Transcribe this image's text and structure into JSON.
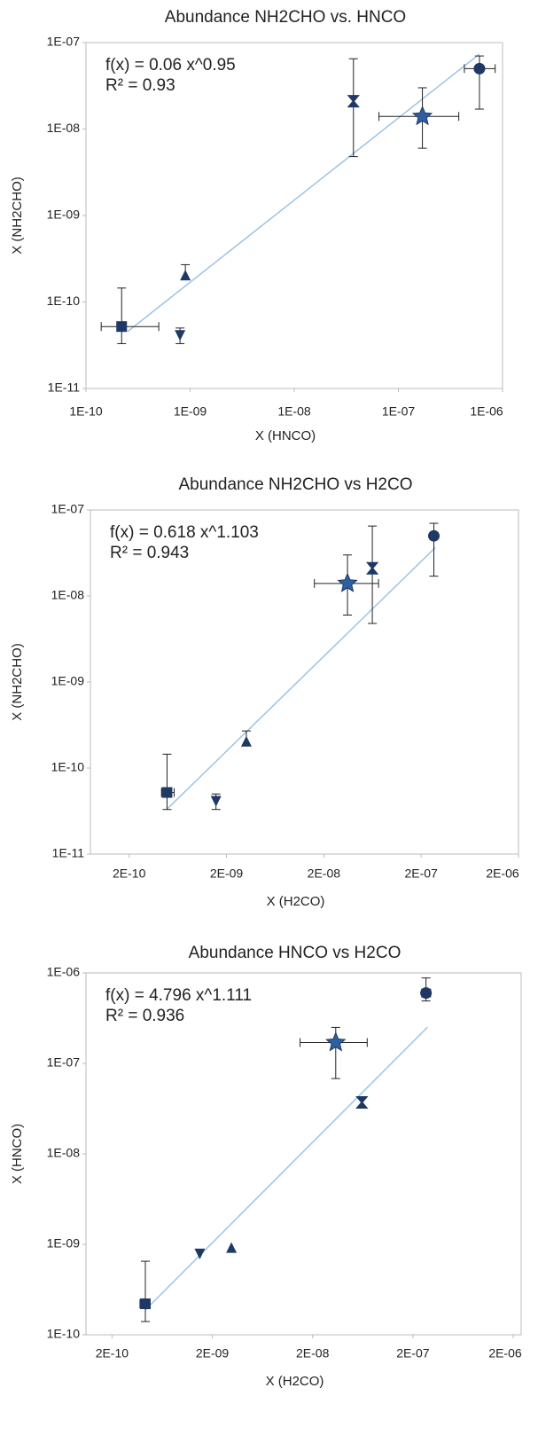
{
  "chart_data": [
    {
      "type": "scatter",
      "title": "Abundance NH2CHO vs. HNCO",
      "x_label": "X (HNCO)",
      "y_label": "X (NH2CHO)",
      "log_x": true,
      "log_y": true,
      "xlim": [
        1e-10,
        1e-06
      ],
      "ylim": [
        1e-11,
        1e-07
      ],
      "xticks": [
        {
          "value": 1e-10,
          "label": "1E-10"
        },
        {
          "value": 1e-09,
          "label": "1E-09"
        },
        {
          "value": 1e-08,
          "label": "1E-08"
        },
        {
          "value": 1e-07,
          "label": "1E-07"
        },
        {
          "value": 1e-06,
          "label": "1E-06"
        }
      ],
      "yticks": [
        {
          "value": 1e-11,
          "label": "1E-11"
        },
        {
          "value": 1e-10,
          "label": "1E-10"
        },
        {
          "value": 1e-09,
          "label": "1E-09"
        },
        {
          "value": 1e-08,
          "label": "1E-08"
        },
        {
          "value": 1e-07,
          "label": "1E-07"
        }
      ],
      "annotations": [
        "f(x) = 0.06 x^0.95",
        "R² = 0.93"
      ],
      "markers": [
        "square",
        "triangle-down",
        "triangle-up",
        "cross",
        "star",
        "circle"
      ],
      "color": "#1f3864",
      "star_color": "#2e5f9e",
      "fit_color": "#9dc3e6",
      "x": [
        2.2e-10,
        8e-10,
        9e-10,
        3.7e-08,
        1.7e-07,
        6e-07
      ],
      "y": [
        5.2e-11,
        4.2e-11,
        2e-10,
        2.1e-08,
        1.4e-08,
        5e-08
      ],
      "x_low": [
        1.4e-10,
        null,
        null,
        null,
        6.5e-08,
        4.3e-07
      ],
      "x_high": [
        5e-10,
        null,
        null,
        null,
        3.8e-07,
        8.5e-07
      ],
      "y_low": [
        3.3e-11,
        3.3e-11,
        null,
        4.8e-09,
        6e-09,
        1.7e-08
      ],
      "y_high": [
        1.45e-10,
        5e-11,
        2.7e-10,
        6.5e-08,
        3e-08,
        7e-08
      ],
      "fit": {
        "coef": 0.06,
        "power": 0.95,
        "x_range": [
          2.5e-10,
          6e-07
        ]
      }
    },
    {
      "type": "scatter",
      "title": "Abundance NH2CHO vs H2CO",
      "x_label": "X (H2CO)",
      "y_label": "X (NH2CHO)",
      "log_x": true,
      "log_y": true,
      "xlim": [
        8e-11,
        2e-06
      ],
      "ylim": [
        1e-11,
        1e-07
      ],
      "xticks": [
        {
          "value": 2e-10,
          "label": "2E-10"
        },
        {
          "value": 2e-09,
          "label": "2E-09"
        },
        {
          "value": 2e-08,
          "label": "2E-08"
        },
        {
          "value": 2e-07,
          "label": "2E-07"
        },
        {
          "value": 2e-06,
          "label": "2E-06"
        }
      ],
      "yticks": [
        {
          "value": 1e-11,
          "label": "1E-11"
        },
        {
          "value": 1e-10,
          "label": "1E-10"
        },
        {
          "value": 1e-09,
          "label": "1E-09"
        },
        {
          "value": 1e-08,
          "label": "1E-08"
        },
        {
          "value": 1e-07,
          "label": "1E-07"
        }
      ],
      "annotations": [
        "f(x) = 0.618 x^1.103",
        "R² = 0.943"
      ],
      "markers": [
        "square",
        "triangle-down",
        "triangle-up",
        "star",
        "cross",
        "circle"
      ],
      "color": "#1f3864",
      "star_color": "#2e5f9e",
      "fit_color": "#9dc3e6",
      "x": [
        4.9e-10,
        1.56e-09,
        3.2e-09,
        3.5e-08,
        6.3e-08,
        2.7e-07
      ],
      "y": [
        5.2e-11,
        4.2e-11,
        2e-10,
        1.4e-08,
        2.1e-08,
        5e-08
      ],
      "x_low": [
        4.3e-10,
        null,
        null,
        1.6e-08,
        null,
        2.5e-07
      ],
      "x_high": [
        5.8e-10,
        null,
        null,
        7.3e-08,
        null,
        2.9e-07
      ],
      "y_low": [
        3.3e-11,
        3.3e-11,
        null,
        6e-09,
        4.8e-09,
        1.7e-08
      ],
      "y_high": [
        1.45e-10,
        5e-11,
        2.7e-10,
        3e-08,
        6.5e-08,
        7e-08
      ],
      "fit": {
        "coef": 0.618,
        "power": 1.103,
        "x_range": [
          4.9e-10,
          2.8e-07
        ]
      }
    },
    {
      "type": "scatter",
      "title": "Abundance HNCO vs H2CO",
      "x_label": "X (H2CO)",
      "y_label": "X (HNCO)",
      "log_x": true,
      "log_y": true,
      "xlim": [
        1.1e-10,
        2.4e-06
      ],
      "ylim": [
        1e-10,
        1e-06
      ],
      "xticks": [
        {
          "value": 2e-10,
          "label": "2E-10"
        },
        {
          "value": 2e-09,
          "label": "2E-09"
        },
        {
          "value": 2e-08,
          "label": "2E-08"
        },
        {
          "value": 2e-07,
          "label": "2E-07"
        },
        {
          "value": 2e-06,
          "label": "2E-06"
        }
      ],
      "yticks": [
        {
          "value": 1e-10,
          "label": "1E-10"
        },
        {
          "value": 1e-09,
          "label": "1E-09"
        },
        {
          "value": 1e-08,
          "label": "1E-08"
        },
        {
          "value": 1e-07,
          "label": "1E-07"
        },
        {
          "value": 1e-06,
          "label": "1E-06"
        }
      ],
      "annotations": [
        "f(x) = 4.796 x^1.111",
        "R² = 0.936"
      ],
      "markers": [
        "square",
        "triangle-down",
        "triangle-up",
        "star",
        "cross",
        "circle"
      ],
      "color": "#1f3864",
      "star_color": "#2e5f9e",
      "fit_color": "#9dc3e6",
      "x": [
        4.3e-10,
        1.5e-09,
        3.1e-09,
        3.4e-08,
        6.2e-08,
        2.7e-07
      ],
      "y": [
        2.2e-10,
        8e-10,
        9e-10,
        1.7e-07,
        3.7e-08,
        6e-07
      ],
      "x_low": [
        3.8e-10,
        null,
        null,
        1.5e-08,
        null,
        2.45e-07
      ],
      "x_high": [
        4.8e-10,
        null,
        null,
        7e-08,
        null,
        3e-07
      ],
      "y_low": [
        1.4e-10,
        null,
        null,
        6.8e-08,
        null,
        4.9e-07
      ],
      "y_high": [
        6.5e-10,
        null,
        null,
        2.5e-07,
        null,
        8.8e-07
      ],
      "fit": {
        "coef": 4.796,
        "power": 1.111,
        "x_range": [
          4.3e-10,
          2.8e-07
        ]
      }
    }
  ]
}
